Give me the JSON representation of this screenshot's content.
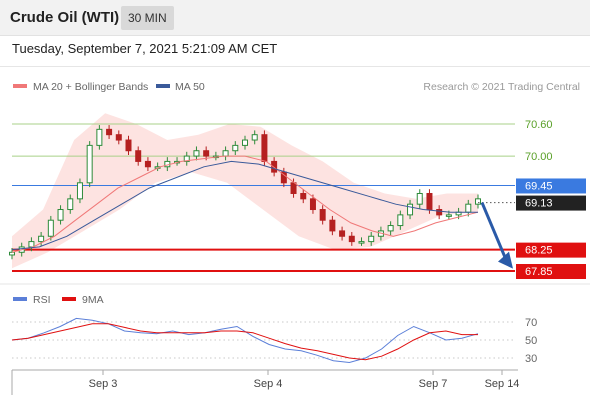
{
  "header": {
    "instrument": "Crude Oil (WTI)",
    "interval": "30 MIN",
    "timestamp": "Tuesday, September 7, 2021 5:21:09 AM CET"
  },
  "legend": {
    "ma20_label": "MA 20 + Bollinger Bands",
    "ma50_label": "MA 50",
    "credit": "Research © 2021 Trading Central",
    "rsi_label": "RSI",
    "rsi_ma_label": "9MA"
  },
  "colors": {
    "ma20": "#f07878",
    "band_fill": "#fde0de",
    "ma50": "#3a5a9a",
    "candle_up": "#2e8b3a",
    "candle_down": "#b52020",
    "green_level": "#a8d088",
    "green_text": "#5aa028",
    "blue_level": "#3a7ae0",
    "red_level": "#e01010",
    "arrow": "#2a5aa8",
    "rsi": "#5b7fd8",
    "rsi_ma": "#e01010"
  },
  "chart_data": [
    {
      "type": "candlestick",
      "title": "",
      "y_range": [
        67.6,
        71.0
      ],
      "x_ticks": [
        "Sep 3",
        "Sep 4",
        "Sep 7",
        "Sep 14"
      ],
      "levels": [
        {
          "value": 70.6,
          "label": "70.60",
          "kind": "resistance-green"
        },
        {
          "value": 70.0,
          "label": "70.00",
          "kind": "resistance-green"
        },
        {
          "value": 69.45,
          "label": "69.45",
          "kind": "pivot-blue"
        },
        {
          "value": 68.25,
          "label": "68.25",
          "kind": "support-red"
        },
        {
          "value": 67.85,
          "label": "67.85",
          "kind": "support-red"
        }
      ],
      "last_price": {
        "value": 69.13,
        "label": "69.13"
      },
      "close_series": [
        68.2,
        68.3,
        68.4,
        68.5,
        68.8,
        69.0,
        69.2,
        69.5,
        70.2,
        70.5,
        70.4,
        70.3,
        70.1,
        69.9,
        69.8,
        69.8,
        69.9,
        69.9,
        70.0,
        70.1,
        70.0,
        70.0,
        70.1,
        70.2,
        70.3,
        70.4,
        69.9,
        69.7,
        69.5,
        69.3,
        69.2,
        69.0,
        68.8,
        68.6,
        68.5,
        68.4,
        68.4,
        68.5,
        68.6,
        68.7,
        68.9,
        69.1,
        69.3,
        69.0,
        68.9,
        68.9,
        68.95,
        69.1,
        69.2
      ],
      "ma20_series": [
        68.2,
        68.3,
        68.5,
        68.8,
        69.1,
        69.4,
        69.6,
        69.8,
        69.9,
        69.95,
        70.0,
        70.0,
        69.9,
        69.6,
        69.3,
        69.0,
        68.75,
        68.6,
        68.5,
        68.6,
        68.75,
        68.85,
        68.95
      ],
      "ma50_series": [
        68.25,
        68.3,
        68.5,
        68.8,
        69.1,
        69.4,
        69.6,
        69.8,
        69.9,
        69.85,
        69.7,
        69.55,
        69.4,
        69.25,
        69.1,
        69.0,
        68.95,
        68.95
      ],
      "bollinger_upper": [
        68.5,
        69.0,
        70.3,
        70.8,
        70.6,
        70.3,
        70.4,
        70.6,
        70.55,
        70.2,
        69.9,
        69.5,
        69.3,
        69.2,
        69.3,
        69.3
      ],
      "bollinger_lower": [
        67.9,
        68.2,
        68.6,
        69.0,
        69.5,
        69.7,
        69.5,
        69.0,
        68.5,
        68.25,
        68.3,
        68.6,
        68.9,
        68.95
      ]
    },
    {
      "type": "line",
      "title": "",
      "y_range": [
        20,
        80
      ],
      "y_ticks": [
        70,
        50,
        30
      ],
      "series": [
        {
          "name": "RSI",
          "values": [
            50,
            52,
            58,
            65,
            74,
            72,
            68,
            60,
            58,
            57,
            60,
            56,
            58,
            62,
            65,
            54,
            45,
            40,
            38,
            33,
            27,
            25,
            30,
            40,
            55,
            65,
            58,
            50,
            52,
            57
          ]
        },
        {
          "name": "9MA",
          "values": [
            50,
            52,
            56,
            60,
            64,
            68,
            68,
            64,
            60,
            58,
            58,
            58,
            58,
            60,
            60,
            58,
            52,
            46,
            41,
            38,
            34,
            30,
            28,
            32,
            40,
            50,
            58,
            60,
            56,
            56
          ]
        }
      ]
    }
  ]
}
